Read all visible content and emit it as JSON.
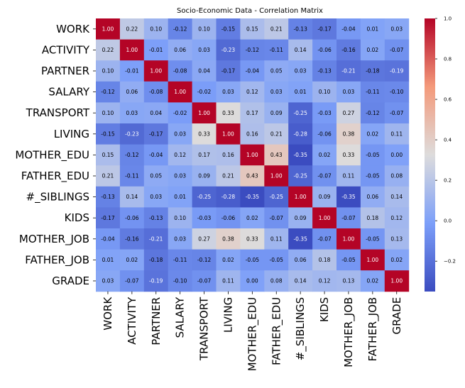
{
  "chart_data": {
    "type": "heatmap",
    "title": "Socio-Economic Data - Correlation Matrix",
    "labels": [
      "WORK",
      "ACTIVITY",
      "PARTNER",
      "SALARY",
      "TRANSPORT",
      "LIVING",
      "MOTHER_EDU",
      "FATHER_EDU",
      "#_SIBLINGS",
      "KIDS",
      "MOTHER_JOB",
      "FATHER_JOB",
      "GRADE"
    ],
    "matrix": [
      [
        1.0,
        0.22,
        0.1,
        -0.12,
        0.1,
        -0.15,
        0.15,
        0.21,
        -0.13,
        -0.17,
        -0.04,
        0.01,
        0.03
      ],
      [
        0.22,
        1.0,
        -0.01,
        0.06,
        0.03,
        -0.23,
        -0.12,
        -0.11,
        0.14,
        -0.06,
        -0.16,
        0.02,
        -0.07
      ],
      [
        0.1,
        -0.01,
        1.0,
        -0.08,
        0.04,
        -0.17,
        -0.04,
        0.05,
        0.03,
        -0.13,
        -0.21,
        -0.18,
        -0.19
      ],
      [
        -0.12,
        0.06,
        -0.08,
        1.0,
        -0.02,
        0.03,
        0.12,
        0.03,
        0.01,
        0.1,
        0.03,
        -0.11,
        -0.1
      ],
      [
        0.1,
        0.03,
        0.04,
        -0.02,
        1.0,
        0.33,
        0.17,
        0.09,
        -0.25,
        -0.03,
        0.27,
        -0.12,
        -0.07
      ],
      [
        -0.15,
        -0.23,
        -0.17,
        0.03,
        0.33,
        1.0,
        0.16,
        0.21,
        -0.28,
        -0.06,
        0.38,
        0.02,
        0.11
      ],
      [
        0.15,
        -0.12,
        -0.04,
        0.12,
        0.17,
        0.16,
        1.0,
        0.43,
        -0.35,
        0.02,
        0.33,
        -0.05,
        -0.0
      ],
      [
        0.21,
        -0.11,
        0.05,
        0.03,
        0.09,
        0.21,
        0.43,
        1.0,
        -0.25,
        -0.07,
        0.11,
        -0.05,
        0.08
      ],
      [
        -0.13,
        0.14,
        0.03,
        0.01,
        -0.25,
        -0.28,
        -0.35,
        -0.25,
        1.0,
        0.09,
        -0.35,
        0.06,
        0.14
      ],
      [
        -0.17,
        -0.06,
        -0.13,
        0.1,
        -0.03,
        -0.06,
        0.02,
        -0.07,
        0.09,
        1.0,
        -0.07,
        0.18,
        0.12
      ],
      [
        -0.04,
        -0.16,
        -0.21,
        0.03,
        0.27,
        0.38,
        0.33,
        0.11,
        -0.35,
        -0.07,
        1.0,
        -0.05,
        0.13
      ],
      [
        0.01,
        0.02,
        -0.18,
        -0.11,
        -0.12,
        0.02,
        -0.05,
        -0.05,
        0.06,
        0.18,
        -0.05,
        1.0,
        0.02
      ],
      [
        0.03,
        -0.07,
        -0.19,
        -0.1,
        -0.07,
        0.11,
        -0.0,
        0.08,
        0.14,
        0.12,
        0.13,
        0.02,
        1.0
      ]
    ],
    "colormap": "coolwarm",
    "vmin": -0.35,
    "vmax": 1.0,
    "colorbar_ticks": [
      "1.0",
      "0.8",
      "0.6",
      "0.4",
      "0.2",
      "0.0",
      "−0.2"
    ],
    "colorbar_tick_values": [
      1.0,
      0.8,
      0.6,
      0.4,
      0.2,
      0.0,
      -0.2
    ],
    "grid": false,
    "legend": "colorbar-right"
  }
}
